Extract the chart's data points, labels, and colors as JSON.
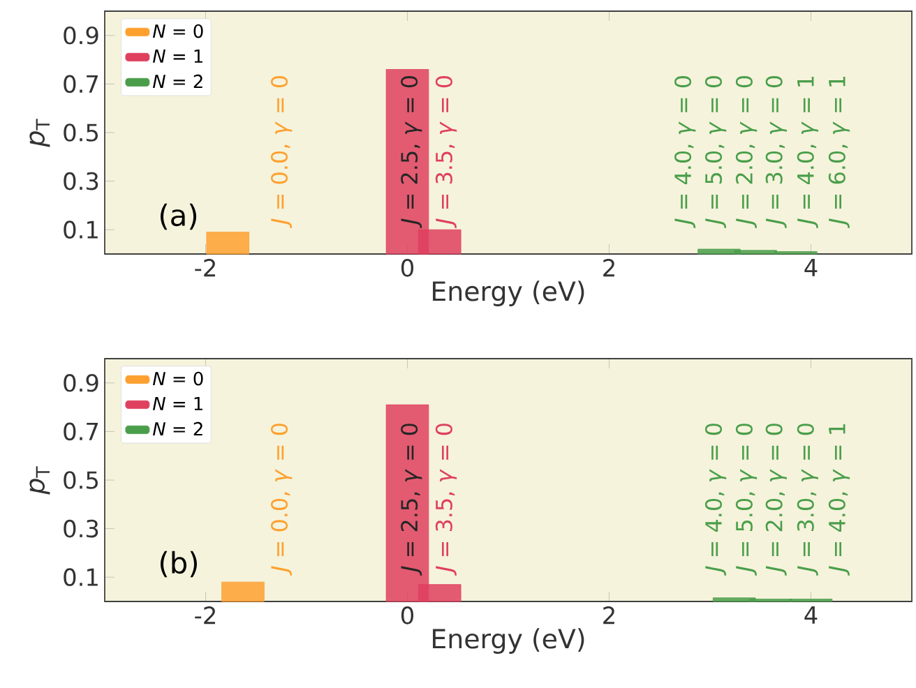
{
  "chart_data": [
    {
      "type": "bar",
      "xlabel": "Energy (eV)",
      "ylabel": "*p*$_{T}$",
      "xlim": [
        -3,
        5
      ],
      "ylim": [
        0,
        1
      ],
      "xticks": [
        -2,
        0,
        2,
        4
      ],
      "yticks": [
        0.1,
        0.3,
        0.5,
        0.7,
        0.9
      ],
      "legend": "top left",
      "series": [
        {
          "name": "*N* = 0",
          "color": "#fea02f",
          "x": [
            -1.78
          ],
          "values": [
            0.09
          ]
        },
        {
          "name": "*N* = 1",
          "color": "#df405e",
          "x": [
            0,
            0.32
          ],
          "values": [
            0.76,
            0.1
          ]
        },
        {
          "name": "*N* = 2",
          "color": "#4a9e4a",
          "x": [
            3.09,
            3.45,
            3.85
          ],
          "values": [
            0.02,
            0.015,
            0.01
          ]
        }
      ],
      "annotations": [
        "(a)",
        "*J* = 0.0, *γ* = 0",
        "*J* = 2.5, *γ* = 0",
        "*J* = 3.5, *γ* = 0",
        "*J* = 4.0, *γ* = 0",
        "*J* = 5.0, *γ* = 0",
        "*J* = 2.0, *γ* = 0",
        "*J* = 3.0, *γ* = 0",
        "*J* = 4.0, *γ* = 1",
        "*J* = 6.0, *γ* = 1"
      ]
    },
    {
      "type": "bar",
      "xlabel": "Energy (eV)",
      "ylabel": "*p*$_{T}$",
      "xlim": [
        -3,
        5
      ],
      "ylim": [
        0,
        1
      ],
      "xticks": [
        -2,
        0,
        2,
        4
      ],
      "yticks": [
        0.1,
        0.3,
        0.5,
        0.7,
        0.9
      ],
      "legend": "top left",
      "series": [
        {
          "name": "*N* = 0",
          "color": "#fea02f",
          "x": [
            -1.63
          ],
          "values": [
            0.08
          ]
        },
        {
          "name": "*N* = 1",
          "color": "#df405e",
          "x": [
            0,
            0.32
          ],
          "values": [
            0.81,
            0.07
          ]
        },
        {
          "name": "*N* = 2",
          "color": "#4a9e4a",
          "x": [
            3.24,
            3.6,
            4.0
          ],
          "values": [
            0.015,
            0.01,
            0.01
          ]
        }
      ],
      "annotations": [
        "(b)",
        "*J* = 0.0, *γ* = 0",
        "*J* = 2.5, *γ* = 0",
        "*J* = 3.5, *γ* = 0",
        "*J* = 4.0, *γ* = 0",
        "*J* = 5.0, *γ* = 0",
        "*J* = 2.0, *γ* = 0",
        "*J* = 3.0, *γ* = 0",
        "*J* = 4.0, *γ* = 1"
      ]
    }
  ]
}
